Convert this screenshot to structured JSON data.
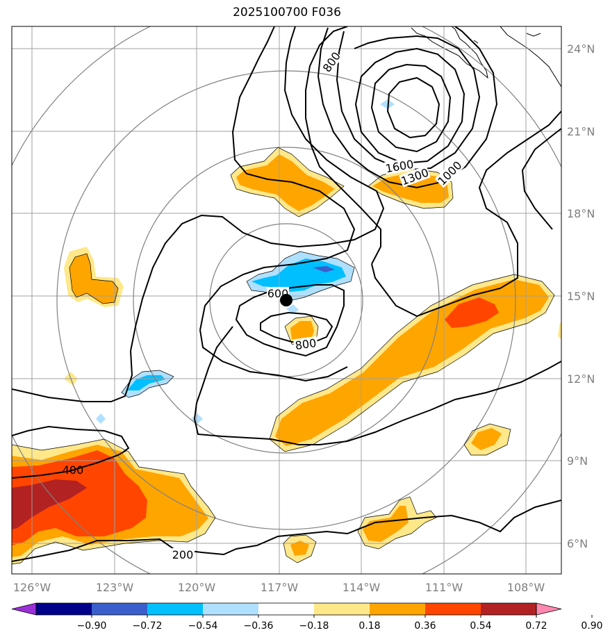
{
  "title": "2025100700 F036",
  "colors": {
    "purple": "#9b30d9",
    "navy": "#00008b",
    "royal": "#3a5fcd",
    "cyan": "#00bfff",
    "lightblue": "#b0e0ff",
    "white": "#ffffff",
    "yellow": "#ffe88a",
    "orange": "#ffa500",
    "redorange": "#ff4500",
    "firebrick": "#b22222",
    "pink": "#ff88b0",
    "grid": "#a0a0a0",
    "ring": "#808080",
    "contour": "#000000"
  },
  "map": {
    "lon_ticks": [
      "126°W",
      "123°W",
      "120°W",
      "117°W",
      "114°W",
      "111°W",
      "108°W"
    ],
    "lat_ticks": [
      "24°N",
      "21°N",
      "18°N",
      "15°N",
      "12°N",
      "9°N",
      "6°N"
    ],
    "contour_labels": [
      "800",
      "1600",
      "1300",
      "1000",
      "600",
      "800",
      "400",
      "200"
    ],
    "center_marker": "storm-center"
  },
  "colorbar": {
    "ticks": [
      "−0.90",
      "−0.72",
      "−0.54",
      "−0.36",
      "−0.18",
      "0.18",
      "0.36",
      "0.54",
      "0.72",
      "0.90"
    ],
    "bins": [
      "purple",
      "navy",
      "royal",
      "cyan",
      "lightblue",
      "white",
      "yellow",
      "orange",
      "redorange",
      "firebrick",
      "pink"
    ]
  }
}
